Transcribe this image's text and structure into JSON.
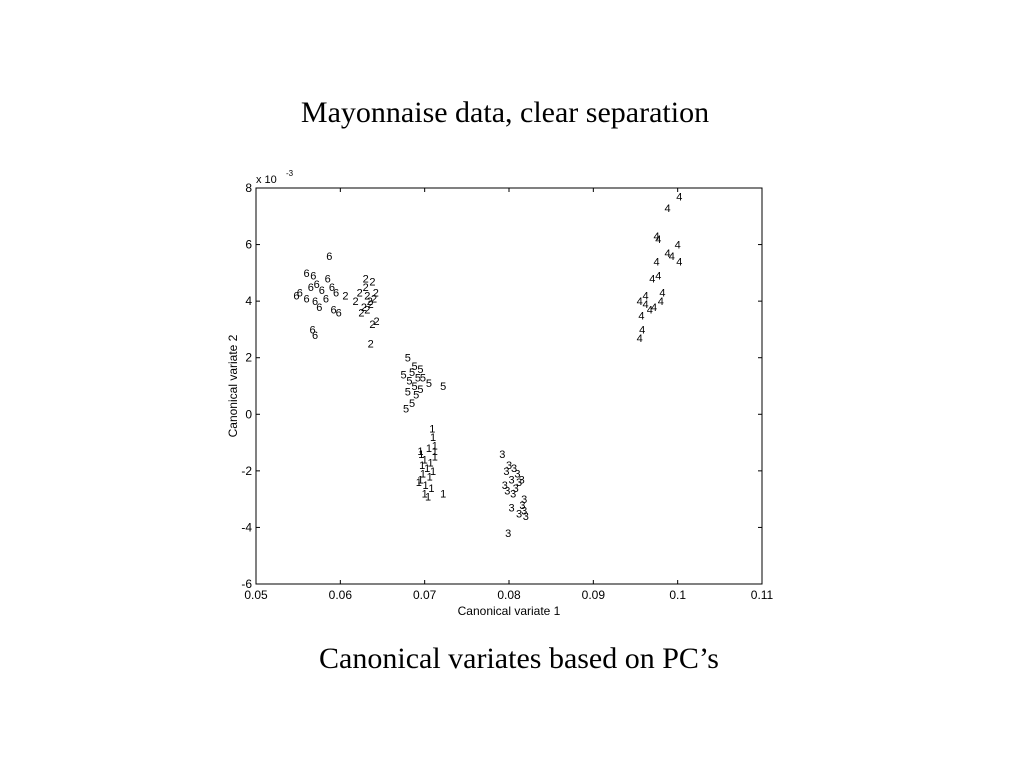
{
  "slide": {
    "title": "Mayonnaise data, clear separation",
    "caption": "Canonical variates based on PC’s"
  },
  "chart_data": {
    "type": "scatter",
    "title": "",
    "xlabel": "Canonical variate 1",
    "ylabel": "Canonical variate 2",
    "xlim": [
      0.05,
      0.11
    ],
    "ylim": [
      -6,
      8
    ],
    "y_multiplier_label": "x 10",
    "y_multiplier_exponent": "-3",
    "xticks": [
      "0.05",
      "0.06",
      "0.07",
      "0.08",
      "0.09",
      "0.1",
      "0.11"
    ],
    "yticks": [
      "-6",
      "-4",
      "-2",
      "0",
      "2",
      "4",
      "6",
      "8"
    ],
    "grid": false,
    "marker_style": "group number",
    "series": [
      {
        "name": "1",
        "points": [
          [
            0.071,
            -0.8
          ],
          [
            0.0712,
            -1.1
          ],
          [
            0.0705,
            -1.2
          ],
          [
            0.0695,
            -1.3
          ],
          [
            0.0712,
            -1.5
          ],
          [
            0.07,
            -1.6
          ],
          [
            0.0707,
            -1.7
          ],
          [
            0.0697,
            -1.8
          ],
          [
            0.0703,
            -1.9
          ],
          [
            0.071,
            -2.0
          ],
          [
            0.0698,
            -2.1
          ],
          [
            0.0706,
            -2.2
          ],
          [
            0.0695,
            -2.3
          ],
          [
            0.0701,
            -2.5
          ],
          [
            0.0708,
            -2.6
          ],
          [
            0.0693,
            -2.4
          ],
          [
            0.07,
            -2.8
          ],
          [
            0.0722,
            -2.8
          ],
          [
            0.0712,
            -1.3
          ],
          [
            0.0704,
            -2.9
          ],
          [
            0.0696,
            -1.4
          ],
          [
            0.0709,
            -0.5
          ]
        ]
      },
      {
        "name": "2",
        "points": [
          [
            0.063,
            4.8
          ],
          [
            0.0638,
            4.7
          ],
          [
            0.0623,
            4.3
          ],
          [
            0.0632,
            4.2
          ],
          [
            0.0618,
            4.0
          ],
          [
            0.064,
            4.1
          ],
          [
            0.0635,
            4.0
          ],
          [
            0.0628,
            3.8
          ],
          [
            0.0636,
            3.9
          ],
          [
            0.0642,
            4.3
          ],
          [
            0.0606,
            4.2
          ],
          [
            0.0625,
            3.6
          ],
          [
            0.0638,
            3.2
          ],
          [
            0.0643,
            3.3
          ],
          [
            0.0636,
            2.5
          ],
          [
            0.0632,
            3.7
          ],
          [
            0.063,
            4.5
          ]
        ]
      },
      {
        "name": "3",
        "points": [
          [
            0.0792,
            -1.4
          ],
          [
            0.08,
            -1.8
          ],
          [
            0.0806,
            -1.9
          ],
          [
            0.0797,
            -2.0
          ],
          [
            0.081,
            -2.1
          ],
          [
            0.0803,
            -2.3
          ],
          [
            0.0795,
            -2.5
          ],
          [
            0.0808,
            -2.6
          ],
          [
            0.0815,
            -2.3
          ],
          [
            0.0812,
            -2.4
          ],
          [
            0.0805,
            -2.8
          ],
          [
            0.0798,
            -2.7
          ],
          [
            0.0818,
            -3.0
          ],
          [
            0.0816,
            -3.2
          ],
          [
            0.0803,
            -3.3
          ],
          [
            0.0812,
            -3.5
          ],
          [
            0.082,
            -3.6
          ],
          [
            0.0818,
            -3.4
          ],
          [
            0.0799,
            -4.2
          ]
        ]
      },
      {
        "name": "4",
        "points": [
          [
            0.1002,
            7.7
          ],
          [
            0.0988,
            7.3
          ],
          [
            0.0975,
            6.3
          ],
          [
            0.0977,
            6.2
          ],
          [
            0.1,
            6.0
          ],
          [
            0.0988,
            5.7
          ],
          [
            0.0993,
            5.6
          ],
          [
            0.1002,
            5.4
          ],
          [
            0.0975,
            5.4
          ],
          [
            0.097,
            4.8
          ],
          [
            0.0977,
            4.9
          ],
          [
            0.0962,
            4.2
          ],
          [
            0.0982,
            4.3
          ],
          [
            0.0955,
            4.0
          ],
          [
            0.0962,
            3.9
          ],
          [
            0.0967,
            3.7
          ],
          [
            0.0972,
            3.8
          ],
          [
            0.098,
            4.0
          ],
          [
            0.0957,
            3.5
          ],
          [
            0.0958,
            3.0
          ],
          [
            0.0955,
            2.7
          ]
        ]
      },
      {
        "name": "5",
        "points": [
          [
            0.068,
            2.0
          ],
          [
            0.0688,
            1.7
          ],
          [
            0.0695,
            1.6
          ],
          [
            0.0685,
            1.5
          ],
          [
            0.0675,
            1.4
          ],
          [
            0.0692,
            1.3
          ],
          [
            0.0682,
            1.2
          ],
          [
            0.0698,
            1.3
          ],
          [
            0.0705,
            1.1
          ],
          [
            0.0688,
            1.0
          ],
          [
            0.0695,
            0.9
          ],
          [
            0.068,
            0.8
          ],
          [
            0.069,
            0.7
          ],
          [
            0.0722,
            1.0
          ],
          [
            0.0685,
            0.4
          ],
          [
            0.0678,
            0.2
          ]
        ]
      },
      {
        "name": "6",
        "points": [
          [
            0.0587,
            5.6
          ],
          [
            0.056,
            5.0
          ],
          [
            0.0568,
            4.9
          ],
          [
            0.0585,
            4.8
          ],
          [
            0.0572,
            4.6
          ],
          [
            0.0565,
            4.5
          ],
          [
            0.059,
            4.5
          ],
          [
            0.0578,
            4.4
          ],
          [
            0.0552,
            4.3
          ],
          [
            0.056,
            4.1
          ],
          [
            0.057,
            4.0
          ],
          [
            0.0583,
            4.1
          ],
          [
            0.0595,
            4.3
          ],
          [
            0.0548,
            4.2
          ],
          [
            0.0575,
            3.8
          ],
          [
            0.0592,
            3.7
          ],
          [
            0.0598,
            3.6
          ],
          [
            0.0567,
            3.0
          ],
          [
            0.057,
            2.8
          ]
        ]
      }
    ]
  }
}
